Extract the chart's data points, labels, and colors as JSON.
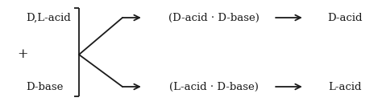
{
  "bg_color": "#ffffff",
  "text_color": "#1a1a1a",
  "font_size": 9.5,
  "font_family": "DejaVu Serif",
  "labels": {
    "dl_acid": "D,L-acid",
    "plus": "+",
    "d_base": "D-base",
    "d_salt": "(D-acid · D-base)",
    "l_salt": "(L-acid · D-base)",
    "d_acid_prod": "D-acid",
    "l_acid_prod": "L-acid"
  },
  "figsize": [
    4.74,
    1.37
  ],
  "dpi": 100,
  "xlim": [
    0,
    474
  ],
  "ylim": [
    0,
    137
  ]
}
